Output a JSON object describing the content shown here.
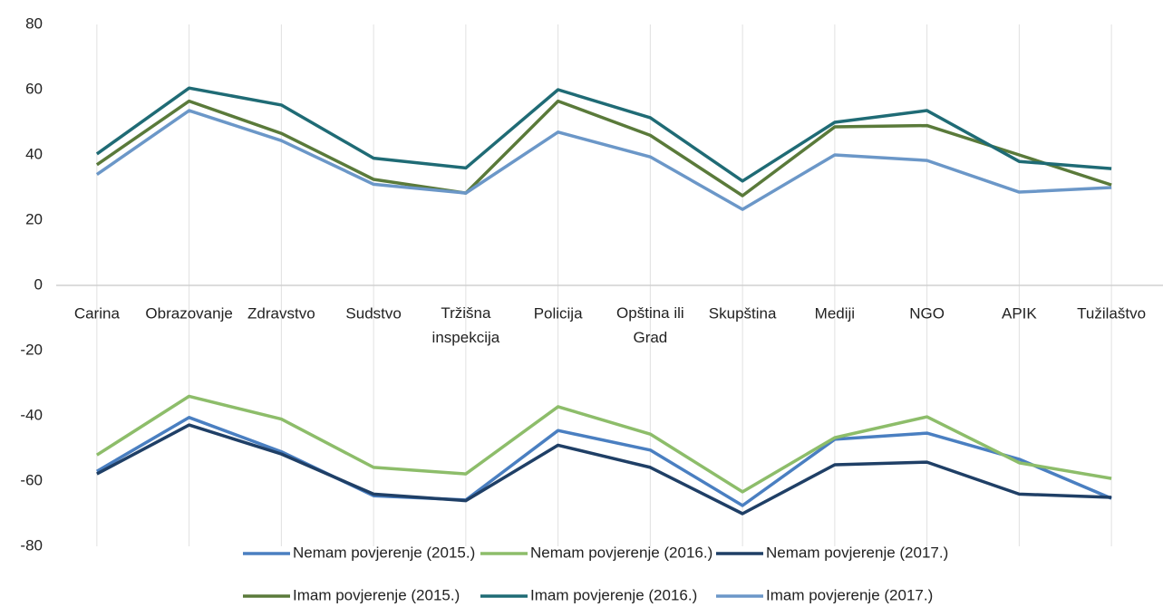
{
  "chart_data": {
    "type": "line",
    "categories": [
      "Carina",
      "Obrazovanje",
      "Zdravstvo",
      "Sudstvo",
      "Tržišna inspekcija",
      "Policija",
      "Opština ili Grad",
      "Skupština",
      "Mediji",
      "NGO",
      "APIK",
      "Tužilaštvo"
    ],
    "series": [
      {
        "name": "Nemam povjerenje (2015.)",
        "color": "#4a7fc1",
        "values": [
          -57,
          -40.5,
          -51,
          -64.5,
          -65.8,
          -44.5,
          -50.5,
          -67.5,
          -47.2,
          -45.3,
          -53.3,
          -65.3
        ]
      },
      {
        "name": "Nemam povjerenje (2016.)",
        "color": "#8dbd6a",
        "values": [
          -52,
          -34,
          -41,
          -55.8,
          -57.8,
          -37.2,
          -45.6,
          -63.3,
          -46.7,
          -40.3,
          -54.4,
          -59.2
        ]
      },
      {
        "name": "Nemam povjerenje (2017.)",
        "color": "#1f3f66",
        "values": [
          -57.8,
          -42.8,
          -51.7,
          -64,
          -66,
          -49,
          -55.8,
          -70,
          -55,
          -54.2,
          -64,
          -65
        ]
      },
      {
        "name": "Imam povjerenje (2015.)",
        "color": "#5a7a3a",
        "values": [
          37,
          56.5,
          46.6,
          32.5,
          28.3,
          56.5,
          46,
          27.5,
          48.6,
          49,
          40,
          30.8
        ]
      },
      {
        "name": "Imam povjerenje (2016.)",
        "color": "#1f6b75",
        "values": [
          40.3,
          60.5,
          55.3,
          39,
          36,
          60,
          51.4,
          32,
          50,
          53.6,
          38,
          35.8
        ]
      },
      {
        "name": "Imam povjerenje (2017.)",
        "color": "#6b97c8",
        "values": [
          34,
          53.6,
          44.4,
          31,
          28.3,
          47,
          39.4,
          23.3,
          40,
          38.3,
          28.6,
          30
        ]
      }
    ],
    "ylim": [
      -80,
      80
    ],
    "yticks": [
      -80,
      -60,
      -40,
      -20,
      0,
      20,
      40,
      60,
      80
    ],
    "legend": "bottom"
  }
}
